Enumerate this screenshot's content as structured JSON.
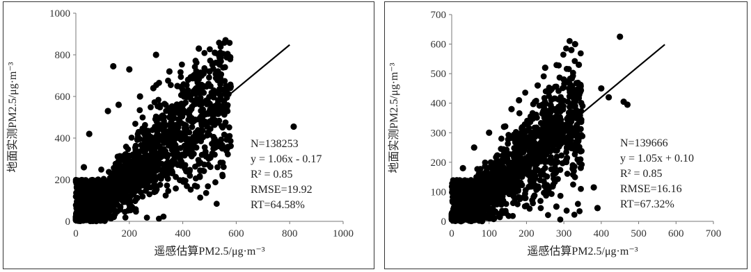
{
  "chart_data": [
    {
      "type": "scatter",
      "title": "",
      "xlabel": "遥感估算PM2.5/μg·m⁻³",
      "ylabel": "地面实测PM2.5/μg·m⁻³",
      "xlim": [
        0,
        1000
      ],
      "ylim": [
        0,
        1000
      ],
      "xticks": [
        0,
        200,
        400,
        600,
        800,
        1000
      ],
      "yticks": [
        0,
        200,
        400,
        600,
        800,
        1000
      ],
      "grid": false,
      "regression_line": {
        "slope": 1.06,
        "intercept": -0.17,
        "x_range": [
          0,
          800
        ]
      },
      "stats": [
        "N=138253",
        "y = 1.06x - 0.17",
        "R² = 0.85",
        "RMSE=19.92",
        "RT=64.58%"
      ],
      "points": [
        [
          815,
          455
        ],
        [
          560,
          870
        ],
        [
          460,
          830
        ],
        [
          520,
          810
        ],
        [
          300,
          800
        ],
        [
          140,
          745
        ],
        [
          200,
          730
        ],
        [
          350,
          720
        ],
        [
          290,
          640
        ],
        [
          240,
          600
        ],
        [
          380,
          650
        ],
        [
          420,
          680
        ],
        [
          470,
          700
        ],
        [
          500,
          720
        ],
        [
          540,
          690
        ],
        [
          120,
          530
        ],
        [
          160,
          560
        ],
        [
          50,
          420
        ],
        [
          30,
          260
        ],
        [
          10,
          180
        ]
      ]
    },
    {
      "type": "scatter",
      "title": "",
      "xlabel": "遥感估算PM2.5/μg·m⁻³",
      "ylabel": "地面实测PM2.5/μg·m⁻³",
      "xlim": [
        0,
        700
      ],
      "ylim": [
        0,
        700
      ],
      "xticks": [
        0,
        100,
        200,
        300,
        400,
        500,
        600,
        700
      ],
      "yticks": [
        0,
        100,
        200,
        300,
        400,
        500,
        600,
        700
      ],
      "grid": false,
      "regression_line": {
        "slope": 1.05,
        "intercept": 0.1,
        "x_range": [
          0,
          570
        ]
      },
      "stats": [
        "N=139666",
        "y = 1.05x + 0.10",
        "R² = 0.85",
        "RMSE=16.16",
        "RT=67.32%"
      ],
      "points": [
        [
          450,
          625
        ],
        [
          330,
          600
        ],
        [
          320,
          580
        ],
        [
          470,
          395
        ],
        [
          460,
          405
        ],
        [
          380,
          115
        ],
        [
          390,
          45
        ],
        [
          280,
          50
        ],
        [
          420,
          420
        ],
        [
          400,
          450
        ],
        [
          250,
          520
        ],
        [
          340,
          530
        ],
        [
          300,
          480
        ],
        [
          230,
          460
        ],
        [
          180,
          410
        ],
        [
          160,
          380
        ],
        [
          140,
          320
        ],
        [
          100,
          300
        ],
        [
          60,
          250
        ],
        [
          30,
          180
        ]
      ]
    }
  ]
}
